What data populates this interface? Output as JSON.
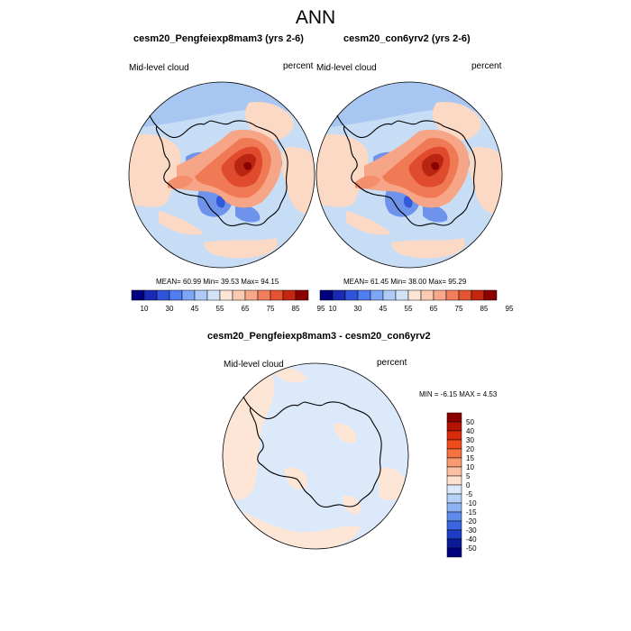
{
  "title": "ANN",
  "panels": [
    {
      "title": "cesm20_Pengfeiexp8mam3 (yrs 2-6)",
      "variable": "Mid-level cloud",
      "units": "percent",
      "stats": "MEAN=  60.99  Min=  39.53  Max=  94.15"
    },
    {
      "title": "cesm20_con6yrv2 (yrs 2-6)",
      "variable": "Mid-level cloud",
      "units": "percent",
      "stats": "MEAN=  61.45  Min=  38.00  Max=  95.29"
    },
    {
      "title": "cesm20_Pengfeiexp8mam3 - cesm20_con6yrv2",
      "variable": "Mid-level cloud",
      "units": "percent",
      "stats": "MIN =  -6.15 MAX =   4.53"
    }
  ],
  "colorbar_top": {
    "labels": [
      "10",
      "30",
      "45",
      "55",
      "65",
      "75",
      "85",
      "95"
    ],
    "colors": [
      "#00007f",
      "#1b2ab4",
      "#2f54d9",
      "#4f7ef0",
      "#7ea6f7",
      "#aecbf7",
      "#d3e3f7",
      "#fde6d6",
      "#fbcbb1",
      "#f8a788",
      "#f27e5c",
      "#e45433",
      "#c4260f",
      "#8b0000"
    ]
  },
  "colorbar_diff": {
    "labels": [
      "50",
      "40",
      "30",
      "20",
      "15",
      "10",
      "5",
      "0",
      "-5",
      "-10",
      "-15",
      "-20",
      "-30",
      "-40",
      "-50"
    ],
    "colors": [
      "#8b0000",
      "#b51405",
      "#d92b0c",
      "#ef4c1c",
      "#f57243",
      "#f89a70",
      "#fbc0a1",
      "#fde0cf",
      "#dbe9fb",
      "#b6d1f7",
      "#8cb3f2",
      "#5f8ceb",
      "#3a64e0",
      "#1e3cc4",
      "#0a1b96",
      "#00007f"
    ]
  }
}
